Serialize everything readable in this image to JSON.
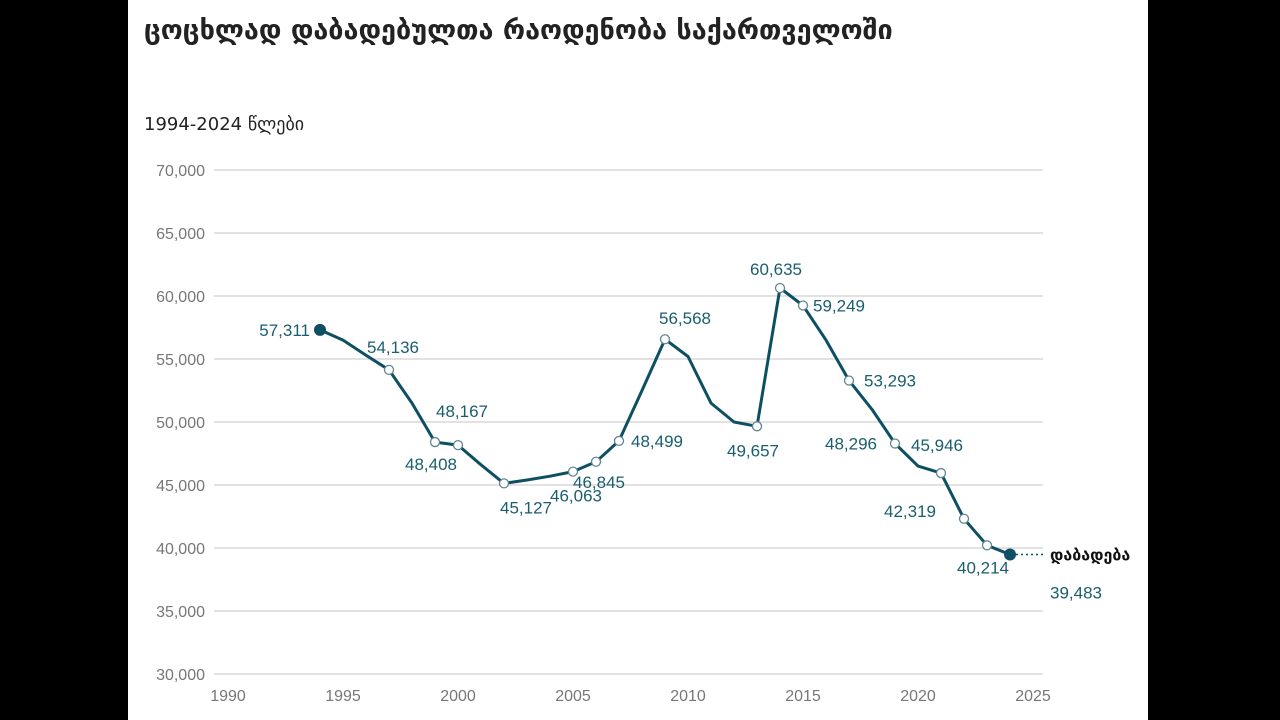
{
  "chart_data": {
    "type": "line",
    "title": "ცოცხლად დაბადებულთა რაოდენობა საქართველოში",
    "subtitle": "1994-2024 წლები",
    "xlabel": "",
    "ylabel": "",
    "xlim": [
      1990,
      2025
    ],
    "ylim": [
      30000,
      70000
    ],
    "x_ticks": [
      "1990",
      "1995",
      "2000",
      "2005",
      "2010",
      "2015",
      "2020",
      "2025"
    ],
    "y_ticks": [
      "30,000",
      "35,000",
      "40,000",
      "45,000",
      "50,000",
      "55,000",
      "60,000",
      "65,000",
      "70,000"
    ],
    "grid": true,
    "line_color": "#0d4f63",
    "label_color": "#1a5e6e",
    "end_label": "დაბადება",
    "series": [
      {
        "x": [
          1994,
          1995,
          1996,
          1997,
          1998,
          1999,
          2000,
          2001,
          2002,
          2003,
          2004,
          2005,
          2006,
          2007,
          2008,
          2009,
          2010,
          2011,
          2012,
          2013,
          2014,
          2015,
          2016,
          2017,
          2018,
          2019,
          2020,
          2021,
          2022,
          2023,
          2024
        ],
        "values": [
          57311,
          56500,
          55300,
          54136,
          51500,
          48408,
          48167,
          46600,
          45127,
          45400,
          45700,
          46063,
          46845,
          48499,
          52500,
          56568,
          55200,
          51500,
          50000,
          49657,
          60635,
          59249,
          56500,
          53293,
          51000,
          48296,
          46500,
          45946,
          42319,
          40214,
          39483
        ]
      }
    ],
    "markers": [
      {
        "x": 1994,
        "y": 57311,
        "label": "57,311",
        "filled": true
      },
      {
        "x": 1997,
        "y": 54136,
        "label": "54,136"
      },
      {
        "x": 1999,
        "y": 48408,
        "label": "48,408"
      },
      {
        "x": 2000,
        "y": 48167,
        "label": "48,167"
      },
      {
        "x": 2002,
        "y": 45127,
        "label": "45,127"
      },
      {
        "x": 2005,
        "y": 46063,
        "label": "46,063"
      },
      {
        "x": 2006,
        "y": 46845,
        "label": "46,845"
      },
      {
        "x": 2007,
        "y": 48499,
        "label": "48,499"
      },
      {
        "x": 2009,
        "y": 56568,
        "label": "56,568"
      },
      {
        "x": 2013,
        "y": 49657,
        "label": "49,657"
      },
      {
        "x": 2014,
        "y": 60635,
        "label": "60,635"
      },
      {
        "x": 2015,
        "y": 59249,
        "label": "59,249"
      },
      {
        "x": 2017,
        "y": 53293,
        "label": "53,293"
      },
      {
        "x": 2019,
        "y": 48296,
        "label": "48,296"
      },
      {
        "x": 2021,
        "y": 45946,
        "label": "45,946"
      },
      {
        "x": 2022,
        "y": 42319,
        "label": "42,319"
      },
      {
        "x": 2023,
        "y": 40214,
        "label": "40,214"
      },
      {
        "x": 2024,
        "y": 39483,
        "label": "39,483",
        "filled": true
      }
    ]
  }
}
